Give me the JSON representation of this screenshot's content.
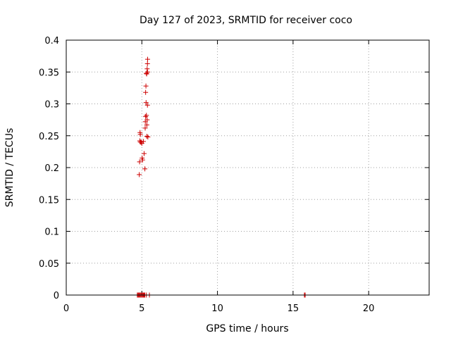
{
  "chart_data": {
    "type": "scatter",
    "title": "Day 127 of 2023, SRMTID for receiver coco",
    "xlabel": "GPS time / hours",
    "ylabel": "SRMTID / TECUs",
    "xlim": [
      0,
      24
    ],
    "ylim": [
      0,
      0.4
    ],
    "xticks": [
      0,
      5,
      10,
      15,
      20
    ],
    "xtick_labels": [
      "0",
      "5",
      "10",
      "15",
      "20"
    ],
    "yticks": [
      0,
      0.05,
      0.1,
      0.15,
      0.2,
      0.25,
      0.3,
      0.35,
      0.4
    ],
    "ytick_labels": [
      "0",
      "0.05",
      "0.1",
      "0.15",
      "0.2",
      "0.25",
      "0.3",
      "0.35",
      "0.4"
    ],
    "grid": true,
    "marker": "plus",
    "color": "#cc0000",
    "series": [
      {
        "x": [
          4.83,
          4.85,
          4.87,
          4.88,
          4.9,
          4.9,
          4.95,
          5.0,
          5.02,
          5.05,
          5.1,
          5.15,
          5.2,
          5.22,
          5.23,
          5.25,
          5.25,
          5.27,
          5.28,
          5.3,
          5.3,
          5.32,
          5.33,
          5.33,
          5.35,
          5.35,
          5.37,
          5.37,
          5.38,
          5.38,
          5.4,
          4.7,
          4.75,
          4.8,
          4.85,
          4.9,
          4.95,
          5.0,
          5.05,
          5.1,
          5.15,
          5.2,
          5.3,
          5.5,
          15.75,
          15.8
        ],
        "y": [
          0.189,
          0.209,
          0.242,
          0.255,
          0.24,
          0.252,
          0.24,
          0.238,
          0.215,
          0.212,
          0.241,
          0.222,
          0.198,
          0.262,
          0.272,
          0.28,
          0.318,
          0.328,
          0.302,
          0.282,
          0.348,
          0.347,
          0.249,
          0.267,
          0.355,
          0.275,
          0.298,
          0.363,
          0.37,
          0.35,
          0.248,
          0,
          0,
          0,
          0,
          0,
          0,
          0,
          0,
          0,
          0,
          0,
          0,
          0,
          0,
          0
        ]
      }
    ]
  }
}
